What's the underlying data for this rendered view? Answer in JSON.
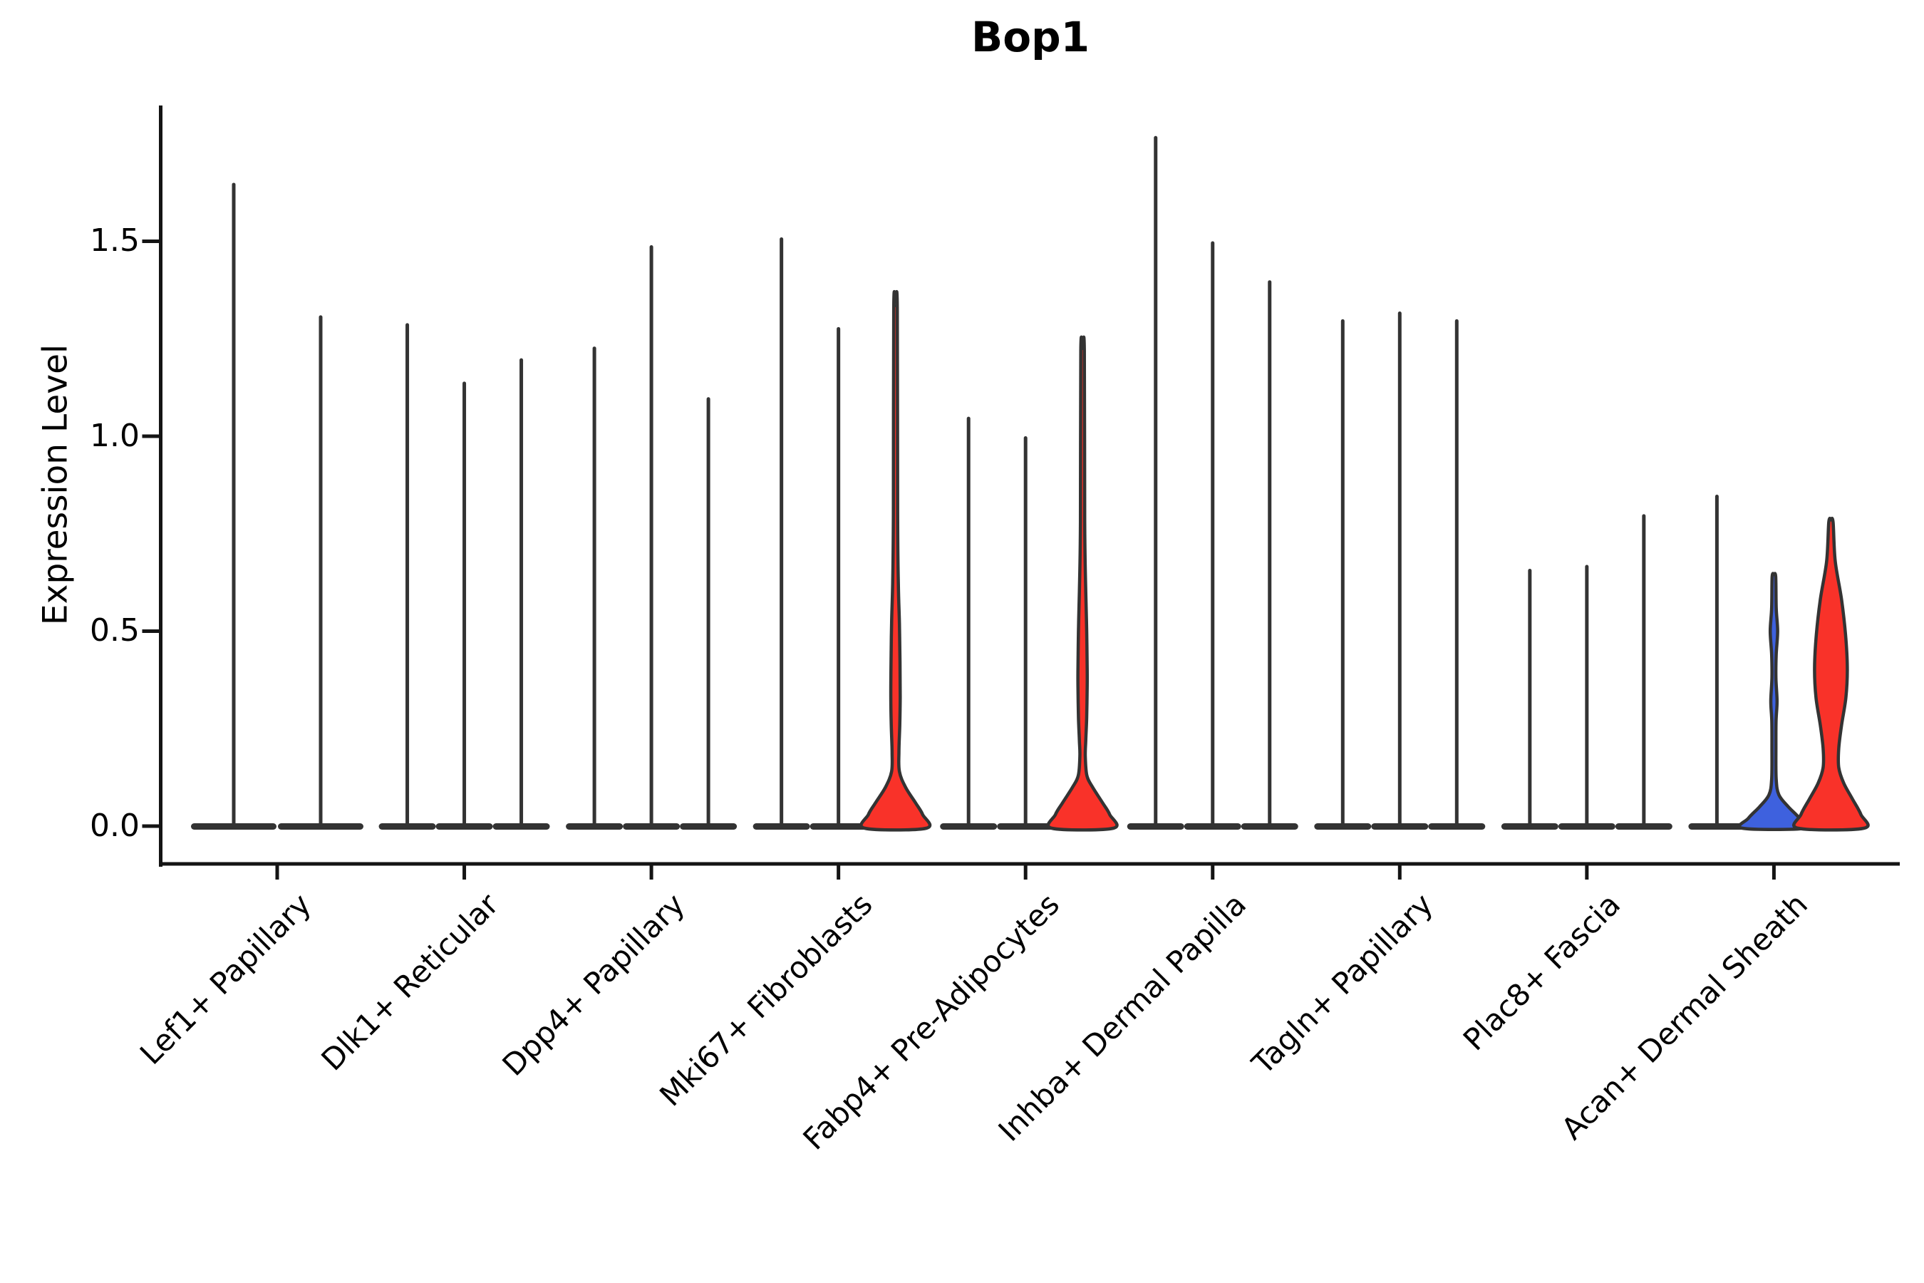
{
  "title": "Bop1",
  "y_axis": {
    "label": "Expression Level",
    "tick_labels": [
      "1.5",
      "1.0",
      "0.5",
      "0.0"
    ]
  },
  "x_axis": {
    "categories": [
      "Lef1+ Papillary",
      "Dlk1+ Reticular",
      "Dpp4+ Papillary",
      "Mki67+ Fibroblasts",
      "Fabp4+ Pre-Adipocytes",
      "Inhba+ Dermal Papilla",
      "Tagln+ Papillary",
      "Plac8+ Fascia",
      "Acan+ Dermal Sheath"
    ]
  },
  "colors": {
    "outline": "#333333",
    "spine": "#141414",
    "red_fill": "#F93229",
    "blue_fill": "#3E61DE"
  },
  "chart_data": {
    "type": "violin",
    "title": "Bop1",
    "ylabel": "Expression Level",
    "ylim": [
      -0.09,
      1.85
    ],
    "yticks": [
      0.0,
      0.5,
      1.0,
      1.5
    ],
    "grid": false,
    "legend": false,
    "categories": [
      "Lef1+ Papillary",
      "Dlk1+ Reticular",
      "Dpp4+ Papillary",
      "Mki67+ Fibroblasts",
      "Fabp4+ Pre-Adipocytes",
      "Inhba+ Dermal Papilla",
      "Tagln+ Papillary",
      "Plac8+ Fascia",
      "Acan+ Dermal Sheath"
    ],
    "groups": [
      {
        "category": "Lef1+ Papillary",
        "violins": [
          {
            "style": "thin",
            "max": 1.65
          },
          {
            "style": "thin",
            "max": 1.31
          }
        ]
      },
      {
        "category": "Dlk1+ Reticular",
        "violins": [
          {
            "style": "thin",
            "max": 1.29
          },
          {
            "style": "thin",
            "max": 1.14
          },
          {
            "style": "thin",
            "max": 1.2
          }
        ]
      },
      {
        "category": "Dpp4+ Papillary",
        "violins": [
          {
            "style": "thin",
            "max": 1.23
          },
          {
            "style": "thin",
            "max": 1.49
          },
          {
            "style": "thin",
            "max": 1.1
          }
        ]
      },
      {
        "category": "Mki67+ Fibroblasts",
        "violins": [
          {
            "style": "thin",
            "max": 1.51
          },
          {
            "style": "thin",
            "max": 1.28
          },
          {
            "style": "filled",
            "max": 1.33,
            "fill": "red",
            "profile": [
              [
                1.33,
                2.5
              ],
              [
                0.8,
                3
              ],
              [
                0.62,
                4
              ],
              [
                0.52,
                5.5
              ],
              [
                0.42,
                6.3
              ],
              [
                0.33,
                6.6
              ],
              [
                0.26,
                6
              ],
              [
                0.19,
                4.8
              ],
              [
                0.14,
                5.5
              ],
              [
                0.1,
                14
              ],
              [
                0.06,
                28
              ],
              [
                0.03,
                38
              ],
              [
                0.0,
                43
              ]
            ]
          }
        ]
      },
      {
        "category": "Fabp4+ Pre-Adipocytes",
        "violins": [
          {
            "style": "thin",
            "max": 1.05
          },
          {
            "style": "thin",
            "max": 1.0
          },
          {
            "style": "filled",
            "max": 1.22,
            "fill": "red",
            "profile": [
              [
                1.22,
                2.5
              ],
              [
                0.78,
                3
              ],
              [
                0.6,
                4.5
              ],
              [
                0.5,
                5.8
              ],
              [
                0.4,
                6.5
              ],
              [
                0.36,
                6.5
              ],
              [
                0.28,
                5.8
              ],
              [
                0.22,
                4.5
              ],
              [
                0.18,
                3.8
              ],
              [
                0.13,
                6
              ],
              [
                0.1,
                14
              ],
              [
                0.06,
                28
              ],
              [
                0.03,
                38
              ],
              [
                0.0,
                43
              ]
            ]
          }
        ]
      },
      {
        "category": "Inhba+ Dermal Papilla",
        "violins": [
          {
            "style": "thin",
            "max": 1.77
          },
          {
            "style": "thin",
            "max": 1.5
          },
          {
            "style": "thin",
            "max": 1.4
          }
        ]
      },
      {
        "category": "Tagln+ Papillary",
        "violins": [
          {
            "style": "thin",
            "max": 1.3
          },
          {
            "style": "thin",
            "max": 1.32
          },
          {
            "style": "thin",
            "max": 1.3
          }
        ]
      },
      {
        "category": "Plac8+ Fascia",
        "violins": [
          {
            "style": "thin",
            "max": 0.66
          },
          {
            "style": "thin",
            "max": 0.67
          },
          {
            "style": "thin",
            "max": 0.8
          }
        ]
      },
      {
        "category": "Acan+ Dermal Sheath",
        "violins": [
          {
            "style": "thin",
            "max": 0.85
          },
          {
            "style": "filled",
            "max": 0.64,
            "fill": "blue",
            "profile": [
              [
                0.64,
                2.5
              ],
              [
                0.56,
                3.2
              ],
              [
                0.5,
                5.2
              ],
              [
                0.44,
                3.2
              ],
              [
                0.38,
                2.8
              ],
              [
                0.32,
                4.4
              ],
              [
                0.27,
                3
              ],
              [
                0.2,
                2.8
              ],
              [
                0.12,
                3.2
              ],
              [
                0.08,
                7
              ],
              [
                0.05,
                20
              ],
              [
                0.02,
                36
              ],
              [
                0.0,
                44
              ]
            ]
          },
          {
            "style": "filled",
            "max": 0.78,
            "fill": "red",
            "profile": [
              [
                0.78,
                3
              ],
              [
                0.68,
                6
              ],
              [
                0.58,
                15
              ],
              [
                0.48,
                21
              ],
              [
                0.4,
                23
              ],
              [
                0.33,
                21
              ],
              [
                0.26,
                15
              ],
              [
                0.2,
                11
              ],
              [
                0.15,
                11
              ],
              [
                0.11,
                18
              ],
              [
                0.07,
                30
              ],
              [
                0.03,
                42
              ],
              [
                0.0,
                46
              ]
            ]
          }
        ]
      }
    ]
  }
}
